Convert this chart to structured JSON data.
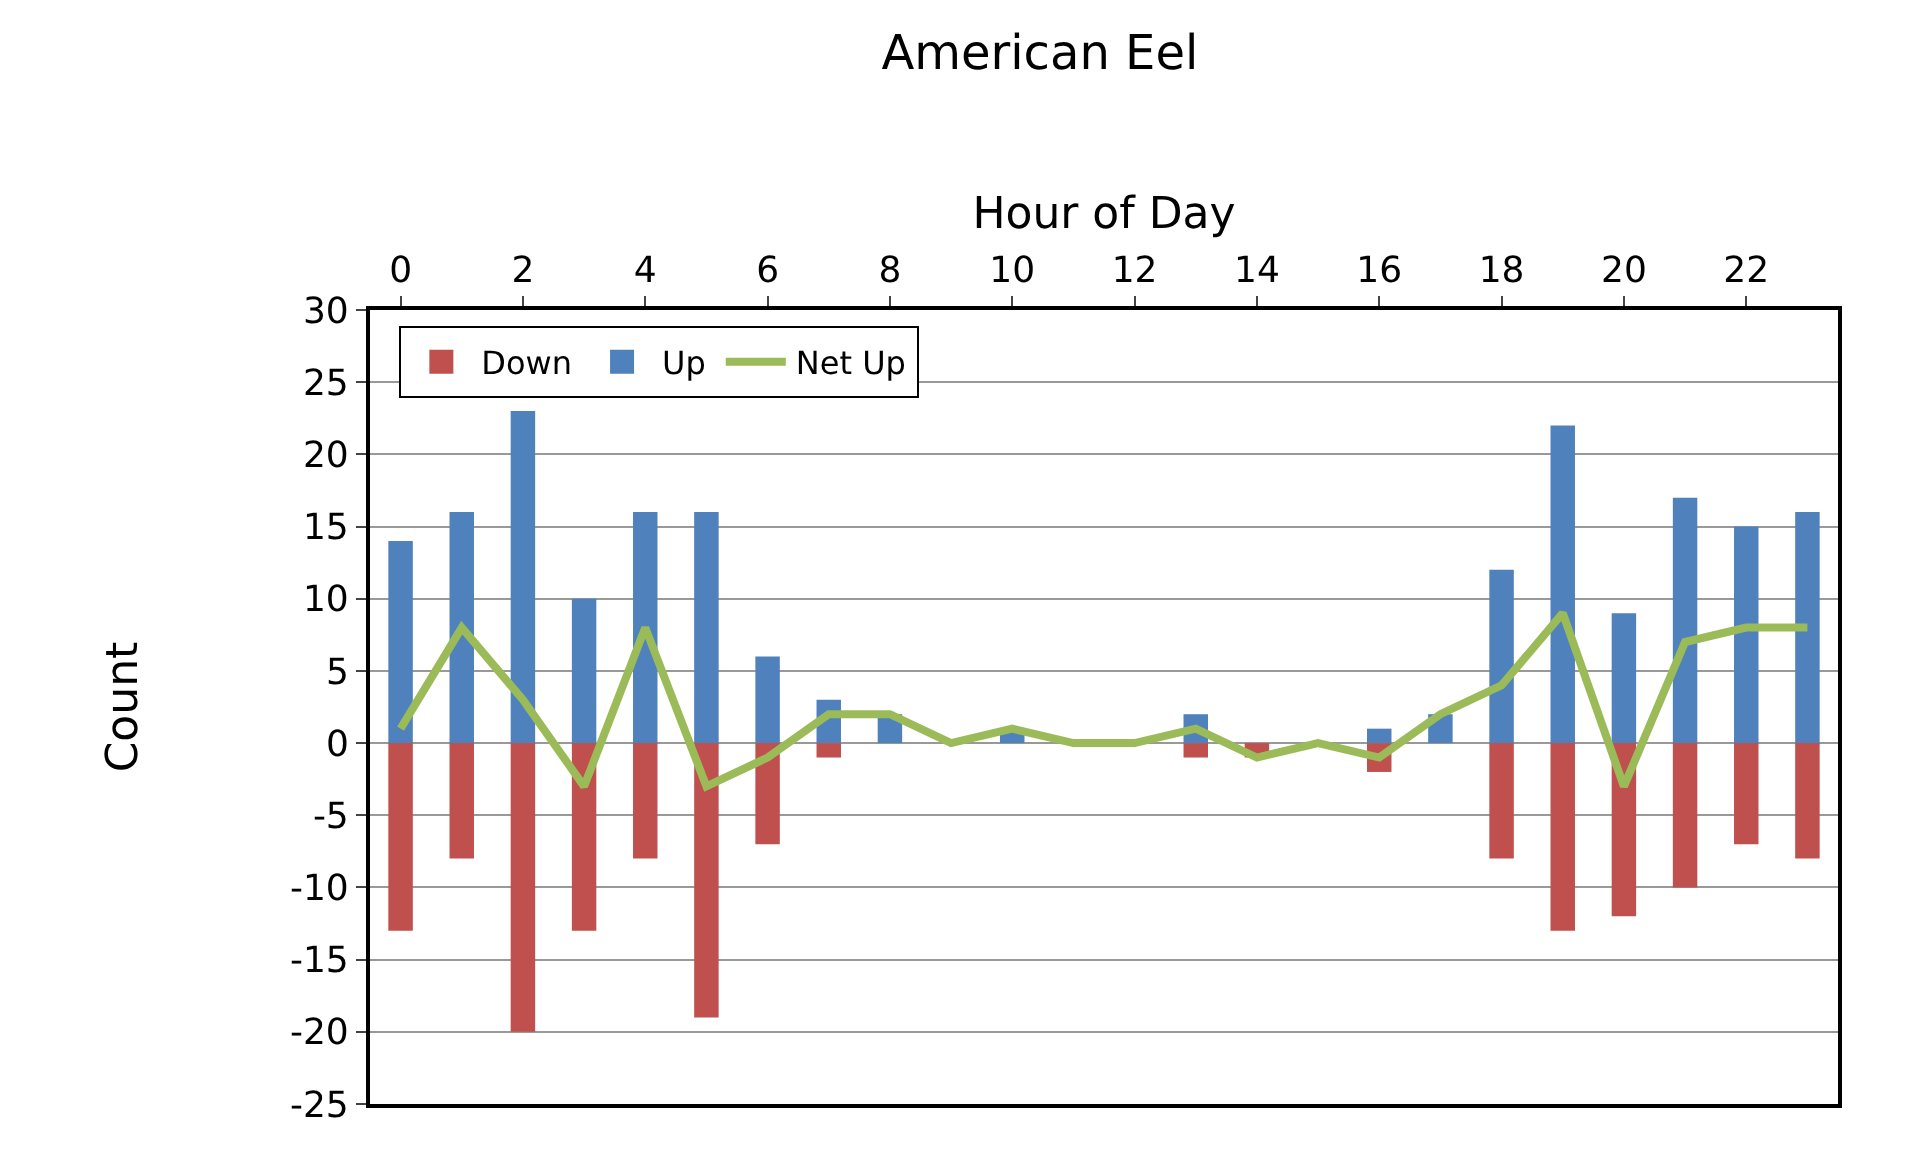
{
  "chart_data": {
    "type": "bar",
    "title": "American Eel",
    "xlabel": "Hour of Day",
    "ylabel": "Count",
    "x": [
      0,
      1,
      2,
      3,
      4,
      5,
      6,
      7,
      8,
      9,
      10,
      11,
      12,
      13,
      14,
      15,
      16,
      17,
      18,
      19,
      20,
      21,
      22,
      23
    ],
    "stacked": true,
    "series": [
      {
        "name": "Down",
        "color": "#c0504d",
        "values": [
          -13,
          -8,
          -20,
          -13,
          -8,
          -19,
          -7,
          -1,
          0,
          0,
          0,
          0,
          0,
          -1,
          -1,
          0,
          -2,
          0,
          -8,
          -13,
          -12,
          -10,
          -7,
          -8
        ]
      },
      {
        "name": "Up",
        "color": "#4f81bd",
        "values": [
          14,
          16,
          23,
          10,
          16,
          16,
          6,
          3,
          2,
          0,
          1,
          0,
          0,
          2,
          0,
          0,
          1,
          2,
          12,
          22,
          9,
          17,
          15,
          16
        ]
      },
      {
        "name": "Net Up",
        "type": "line",
        "color": "#9bbb59",
        "line_style": "solid",
        "marker": "none",
        "values": [
          1,
          8,
          3,
          -3,
          8,
          -3,
          -1,
          2,
          2,
          0,
          1,
          0,
          0,
          1,
          -1,
          0,
          -1,
          2,
          4,
          9,
          -3,
          7,
          8,
          8
        ]
      }
    ],
    "xlim": [
      -0.5,
      23.5
    ],
    "xticks": [
      0,
      2,
      4,
      6,
      8,
      10,
      12,
      14,
      16,
      18,
      20,
      22
    ],
    "ylim": [
      -25,
      30
    ],
    "yticks": [
      -25,
      -20,
      -15,
      -10,
      -5,
      0,
      5,
      10,
      15,
      20,
      25,
      30
    ],
    "grid": "y",
    "legend": "top left"
  }
}
